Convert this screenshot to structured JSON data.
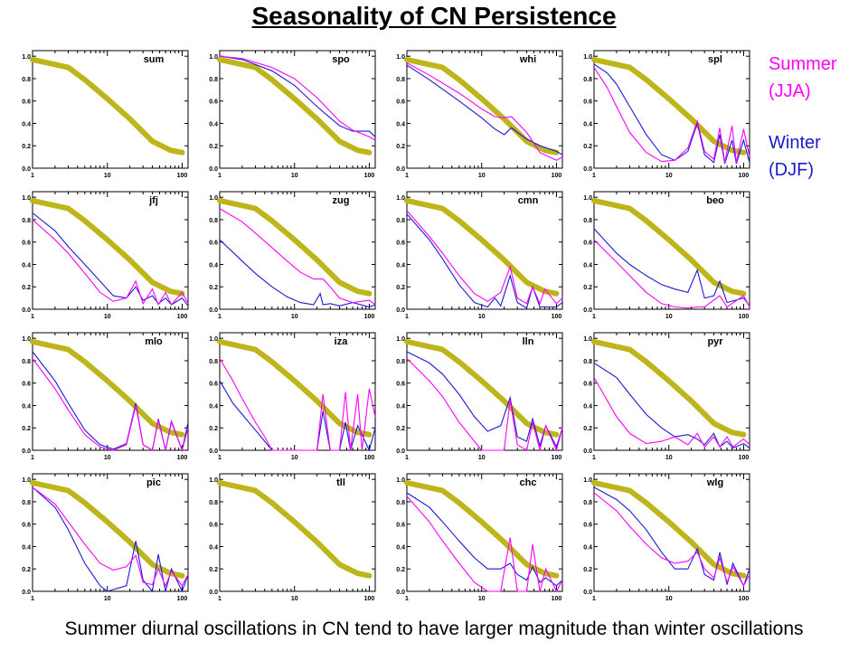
{
  "title": "Seasonality of CN Persistence",
  "caption": "Summer diurnal oscillations in CN tend to have larger magnitude than winter oscillations",
  "legend": {
    "summer": {
      "line1": "Summer",
      "line2": "(JJA)",
      "color": "#ff00ff"
    },
    "winter": {
      "line1": "Winter",
      "line2": "(DJF)",
      "color": "#1a1ad0"
    }
  },
  "colors": {
    "reference": "#bdb519",
    "summer": "#ff00ff",
    "winter": "#1a1ad0"
  },
  "chart_data": {
    "type": "line",
    "layout": "4x4 small multiples",
    "xscale": "log",
    "xlim": [
      1,
      120
    ],
    "ylim": [
      0,
      1.05
    ],
    "xticks": [
      "1",
      "10",
      "100"
    ],
    "yticks": [
      "0.0",
      "0.2",
      "0.4",
      "0.6",
      "0.8",
      "1.0"
    ],
    "reference": {
      "x": [
        1,
        3,
        5,
        10,
        20,
        40,
        70,
        100
      ],
      "y": [
        0.97,
        0.9,
        0.79,
        0.62,
        0.44,
        0.24,
        0.16,
        0.14
      ]
    },
    "panels": [
      {
        "site": "sum",
        "summer": null,
        "winter": null
      },
      {
        "site": "spo",
        "summer": {
          "x": [
            1,
            2,
            5,
            10,
            20,
            40,
            60,
            100,
            120
          ],
          "y": [
            1.0,
            0.98,
            0.9,
            0.8,
            0.63,
            0.42,
            0.34,
            0.28,
            0.25
          ]
        },
        "winter": {
          "x": [
            1,
            2,
            5,
            10,
            20,
            40,
            60,
            100,
            120
          ],
          "y": [
            1.0,
            0.97,
            0.87,
            0.74,
            0.55,
            0.38,
            0.33,
            0.33,
            0.28
          ]
        }
      },
      {
        "site": "whi",
        "summer": {
          "x": [
            1,
            2,
            5,
            10,
            15,
            20,
            25,
            40,
            60,
            100,
            120
          ],
          "y": [
            0.94,
            0.83,
            0.67,
            0.53,
            0.46,
            0.45,
            0.46,
            0.32,
            0.14,
            0.07,
            0.1
          ]
        },
        "winter": {
          "x": [
            1,
            2,
            5,
            10,
            15,
            20,
            25,
            40,
            60,
            100,
            120
          ],
          "y": [
            0.92,
            0.79,
            0.6,
            0.45,
            0.35,
            0.3,
            0.36,
            0.26,
            0.2,
            0.15,
            0.12
          ]
        }
      },
      {
        "site": "spl",
        "summer": {
          "x": [
            1,
            1.5,
            2,
            3,
            5,
            8,
            12,
            18,
            24,
            30,
            40,
            48,
            56,
            70,
            80,
            100,
            120
          ],
          "y": [
            0.9,
            0.72,
            0.55,
            0.32,
            0.14,
            0.06,
            0.07,
            0.18,
            0.42,
            0.15,
            0.08,
            0.36,
            0.05,
            0.38,
            0.05,
            0.35,
            0.1
          ]
        },
        "winter": {
          "x": [
            1,
            1.5,
            2,
            3,
            5,
            8,
            12,
            18,
            24,
            30,
            40,
            48,
            56,
            70,
            80,
            100,
            120
          ],
          "y": [
            0.93,
            0.85,
            0.75,
            0.55,
            0.3,
            0.12,
            0.07,
            0.15,
            0.4,
            0.12,
            0.05,
            0.3,
            0.04,
            0.25,
            0.04,
            0.25,
            0.05
          ]
        }
      },
      {
        "site": "jfj",
        "summer": {
          "x": [
            1,
            2,
            3,
            5,
            8,
            12,
            18,
            24,
            30,
            40,
            48,
            60,
            72,
            100,
            120
          ],
          "y": [
            0.8,
            0.62,
            0.5,
            0.32,
            0.15,
            0.07,
            0.1,
            0.25,
            0.05,
            0.18,
            0.04,
            0.15,
            0.04,
            0.15,
            0.05
          ]
        },
        "winter": {
          "x": [
            1,
            2,
            3,
            5,
            8,
            12,
            18,
            24,
            30,
            40,
            48,
            60,
            72,
            100,
            120
          ],
          "y": [
            0.86,
            0.7,
            0.56,
            0.4,
            0.25,
            0.12,
            0.1,
            0.2,
            0.08,
            0.12,
            0.05,
            0.1,
            0.04,
            0.1,
            0.03
          ]
        }
      },
      {
        "site": "zug",
        "summer": {
          "x": [
            1,
            2,
            3,
            5,
            8,
            12,
            18,
            24,
            30,
            40,
            60,
            100,
            120
          ],
          "y": [
            0.9,
            0.78,
            0.68,
            0.55,
            0.43,
            0.33,
            0.27,
            0.27,
            0.2,
            0.1,
            0.06,
            0.08,
            0.04
          ]
        },
        "winter": {
          "x": [
            1,
            2,
            3,
            5,
            8,
            12,
            18,
            22,
            24,
            30,
            40,
            60,
            100,
            120
          ],
          "y": [
            0.62,
            0.43,
            0.32,
            0.2,
            0.11,
            0.06,
            0.04,
            0.14,
            0.04,
            0.05,
            0.03,
            0.06,
            0.02,
            0.04
          ]
        }
      },
      {
        "site": "cmn",
        "summer": {
          "x": [
            1,
            2,
            3,
            5,
            8,
            12,
            18,
            24,
            30,
            40,
            48,
            60,
            70,
            100,
            120
          ],
          "y": [
            0.88,
            0.65,
            0.5,
            0.3,
            0.14,
            0.07,
            0.15,
            0.38,
            0.1,
            0.05,
            0.2,
            0.05,
            0.18,
            0.05,
            0.1
          ]
        },
        "winter": {
          "x": [
            1,
            2,
            3,
            5,
            8,
            12,
            15,
            18,
            24,
            30,
            40,
            48,
            60,
            100,
            120
          ],
          "y": [
            0.85,
            0.62,
            0.45,
            0.22,
            0.06,
            0.02,
            0.1,
            0.03,
            0.3,
            0.06,
            0.01,
            0.2,
            0.02,
            0.02,
            0.06
          ]
        }
      },
      {
        "site": "beo",
        "summer": {
          "x": [
            1,
            2,
            3,
            5,
            8,
            12,
            18,
            24,
            30,
            48,
            60,
            100,
            120
          ],
          "y": [
            0.62,
            0.42,
            0.3,
            0.15,
            0.05,
            0.02,
            0.01,
            0.02,
            0.02,
            0.12,
            0.02,
            0.12,
            0.02
          ]
        },
        "winter": {
          "x": [
            1,
            2,
            3,
            5,
            8,
            12,
            18,
            24,
            30,
            40,
            48,
            60,
            100,
            120
          ],
          "y": [
            0.72,
            0.5,
            0.4,
            0.3,
            0.22,
            0.18,
            0.15,
            0.35,
            0.1,
            0.12,
            0.25,
            0.06,
            0.1,
            0.03
          ]
        }
      },
      {
        "site": "mlo",
        "summer": {
          "x": [
            1,
            2,
            3,
            5,
            8,
            12,
            18,
            24,
            30,
            40,
            48,
            60,
            72,
            100,
            120
          ],
          "y": [
            0.82,
            0.55,
            0.36,
            0.14,
            0.03,
            0.0,
            0.05,
            0.4,
            0.05,
            0.0,
            0.27,
            0.0,
            0.25,
            0.0,
            0.2
          ]
        },
        "winter": {
          "x": [
            1,
            2,
            3,
            5,
            8,
            12,
            18,
            24,
            30,
            40,
            48,
            60,
            72,
            100,
            120
          ],
          "y": [
            0.88,
            0.62,
            0.42,
            0.18,
            0.05,
            0.01,
            0.06,
            0.42,
            0.05,
            0.0,
            0.28,
            0.0,
            0.26,
            0.0,
            0.25
          ]
        }
      },
      {
        "site": "iza",
        "summer": {
          "x": [
            1,
            1.5,
            2,
            3,
            4,
            5,
            20,
            24,
            30,
            40,
            48,
            56,
            70,
            80,
            100,
            120
          ],
          "y": [
            0.82,
            0.62,
            0.46,
            0.25,
            0.12,
            0.0,
            0.0,
            0.5,
            0.0,
            0.0,
            0.52,
            0.0,
            0.5,
            0.0,
            0.55,
            0.3
          ]
        },
        "winter": {
          "x": [
            1,
            1.5,
            2,
            3,
            4,
            5,
            20,
            24,
            30,
            40,
            48,
            56,
            70,
            100,
            120
          ],
          "y": [
            0.62,
            0.42,
            0.32,
            0.18,
            0.08,
            0.0,
            0.0,
            0.35,
            0.0,
            0.0,
            0.25,
            0.0,
            0.22,
            0.0,
            0.2
          ]
        }
      },
      {
        "site": "lln",
        "summer": {
          "x": [
            1,
            2,
            3,
            5,
            8,
            10,
            20,
            24,
            30,
            40,
            48,
            60,
            72,
            100,
            120
          ],
          "y": [
            0.82,
            0.62,
            0.48,
            0.25,
            0.08,
            0.0,
            0.0,
            0.45,
            0.05,
            0.0,
            0.25,
            0.0,
            0.22,
            0.0,
            0.2
          ]
        },
        "winter": {
          "x": [
            1,
            2,
            3,
            5,
            8,
            12,
            18,
            24,
            30,
            40,
            48,
            60,
            72,
            100,
            120
          ],
          "y": [
            0.88,
            0.78,
            0.68,
            0.5,
            0.3,
            0.17,
            0.22,
            0.47,
            0.12,
            0.08,
            0.28,
            0.04,
            0.22,
            0.03,
            0.2
          ]
        }
      },
      {
        "site": "pyr",
        "summer": {
          "x": [
            1,
            2,
            3,
            5,
            8,
            12,
            18,
            24,
            30,
            40,
            48,
            60,
            72,
            100,
            120
          ],
          "y": [
            0.65,
            0.3,
            0.15,
            0.06,
            0.08,
            0.12,
            0.05,
            0.15,
            0.03,
            0.12,
            0.03,
            0.12,
            0.03,
            0.1,
            0.05
          ]
        },
        "winter": {
          "x": [
            1,
            2,
            3,
            5,
            8,
            12,
            18,
            24,
            30,
            40,
            48,
            60,
            72,
            100,
            120
          ],
          "y": [
            0.78,
            0.65,
            0.5,
            0.32,
            0.2,
            0.12,
            0.14,
            0.1,
            0.05,
            0.15,
            0.03,
            0.08,
            0.02,
            0.06,
            0.02
          ]
        }
      },
      {
        "site": "pic",
        "summer": {
          "x": [
            1,
            2,
            3,
            5,
            8,
            12,
            18,
            24,
            30,
            40,
            48,
            60,
            72,
            100,
            120
          ],
          "y": [
            0.93,
            0.78,
            0.62,
            0.42,
            0.25,
            0.19,
            0.22,
            0.32,
            0.08,
            0.06,
            0.2,
            0.05,
            0.18,
            0.05,
            0.15
          ]
        },
        "winter": {
          "x": [
            1,
            2,
            3,
            5,
            8,
            10,
            18,
            24,
            30,
            40,
            48,
            60,
            72,
            100,
            120
          ],
          "y": [
            0.93,
            0.75,
            0.55,
            0.25,
            0.05,
            0.0,
            0.05,
            0.45,
            0.1,
            0.0,
            0.33,
            0.0,
            0.2,
            0.0,
            0.15
          ]
        }
      },
      {
        "site": "tll",
        "summer": null,
        "winter": null
      },
      {
        "site": "chc",
        "summer": {
          "x": [
            1,
            2,
            3,
            5,
            8,
            12,
            18,
            24,
            30,
            40,
            48,
            60,
            72,
            100,
            120
          ],
          "y": [
            0.85,
            0.62,
            0.45,
            0.25,
            0.08,
            0.0,
            0.0,
            0.48,
            0.0,
            0.0,
            0.42,
            0.0,
            0.2,
            0.0,
            0.1
          ]
        },
        "winter": {
          "x": [
            1,
            2,
            3,
            5,
            8,
            12,
            18,
            24,
            30,
            40,
            48,
            60,
            72,
            100,
            120
          ],
          "y": [
            0.88,
            0.75,
            0.62,
            0.45,
            0.3,
            0.2,
            0.2,
            0.25,
            0.15,
            0.1,
            0.22,
            0.08,
            0.12,
            0.05,
            0.1
          ]
        }
      },
      {
        "site": "wlg",
        "summer": {
          "x": [
            1,
            2,
            3,
            5,
            8,
            12,
            18,
            24,
            30,
            40,
            48,
            60,
            72,
            100,
            120
          ],
          "y": [
            0.88,
            0.72,
            0.58,
            0.42,
            0.3,
            0.25,
            0.27,
            0.35,
            0.2,
            0.12,
            0.3,
            0.08,
            0.22,
            0.05,
            0.15
          ]
        },
        "winter": {
          "x": [
            1,
            2,
            3,
            5,
            8,
            12,
            18,
            24,
            30,
            40,
            48,
            60,
            72,
            100,
            120
          ],
          "y": [
            0.93,
            0.82,
            0.72,
            0.55,
            0.35,
            0.2,
            0.2,
            0.38,
            0.15,
            0.1,
            0.35,
            0.06,
            0.25,
            0.05,
            0.2
          ]
        }
      }
    ]
  }
}
